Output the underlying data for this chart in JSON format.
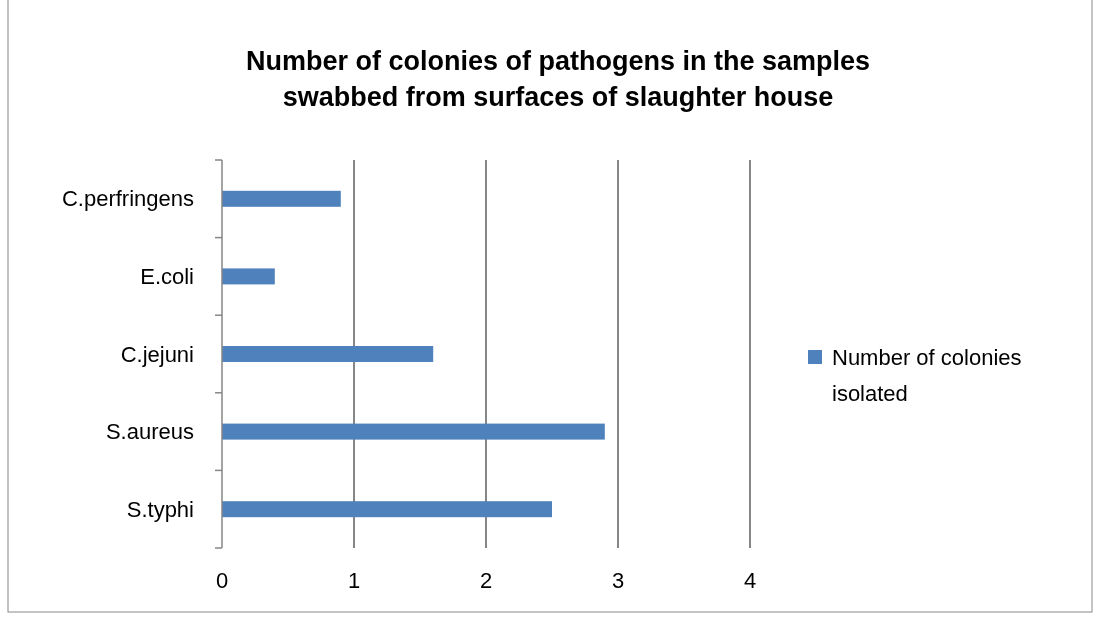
{
  "chart_data": {
    "type": "bar",
    "orientation": "horizontal",
    "title": "Number of colonies of pathogens in the samples swabbed from surfaces of slaughter house",
    "categories": [
      "C.perfringens",
      "E.coli",
      "C.jejuni",
      "S.aureus",
      "S.typhi"
    ],
    "series": [
      {
        "name": "Number of colonies isolated",
        "color": "#4f81bd",
        "values": [
          0.9,
          0.4,
          1.6,
          2.9,
          2.5
        ]
      }
    ],
    "xlim": [
      0,
      4
    ],
    "xticks": [
      0,
      1,
      2,
      3,
      4
    ],
    "grid": "x",
    "legend": "right"
  }
}
